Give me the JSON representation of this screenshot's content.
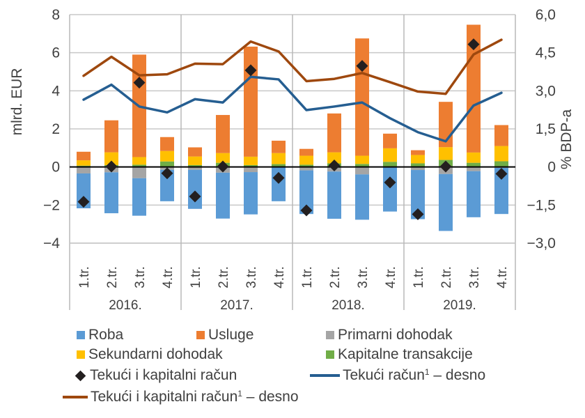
{
  "chart_data": {
    "type": "bar",
    "subtype": "stacked bar with lines and markers",
    "title": "",
    "ylabel": "mlrd. EUR",
    "y2label": "% BDP-a",
    "ylim": [
      -4,
      8
    ],
    "y2lim": [
      -3.0,
      6.0
    ],
    "yticks": [
      "8",
      "6",
      "4",
      "2",
      "0",
      "−2",
      "−4"
    ],
    "yticks_values": [
      8,
      6,
      4,
      2,
      0,
      -2,
      -4
    ],
    "y2ticks": [
      "6,0",
      "4,5",
      "3,0",
      "1,5",
      "0",
      "−1,5",
      "−3,0"
    ],
    "y2ticks_values": [
      6.0,
      4.5,
      3.0,
      1.5,
      0,
      -1.5,
      -3.0
    ],
    "grid": true,
    "groups": [
      "2016.",
      "2017.",
      "2018.",
      "2019."
    ],
    "categories": [
      "1.tr.",
      "2.tr.",
      "3.tr.",
      "4.tr.",
      "1.tr.",
      "2.tr.",
      "3.tr.",
      "4.tr.",
      "1.tr.",
      "2.tr.",
      "3.tr.",
      "4.tr.",
      "1.tr.",
      "2.tr.",
      "3.tr.",
      "4.tr."
    ],
    "series": [
      {
        "name": "Roba",
        "kind": "bar",
        "axis": "left",
        "color": "#5B9BD5",
        "values": [
          -1.83,
          -2.15,
          -1.97,
          -1.65,
          -2.05,
          -2.41,
          -2.22,
          -1.77,
          -2.29,
          -2.48,
          -2.38,
          -2.31,
          -2.58,
          -2.99,
          -2.42,
          -2.42
        ]
      },
      {
        "name": "Usluge",
        "kind": "bar",
        "axis": "left",
        "color": "#ED7D31",
        "values": [
          0.45,
          1.68,
          5.38,
          0.73,
          0.48,
          2.0,
          5.78,
          0.65,
          0.36,
          2.04,
          6.16,
          0.77,
          0.25,
          2.38,
          6.71,
          1.1
        ]
      },
      {
        "name": "Primarni dohodak",
        "kind": "bar",
        "axis": "left",
        "color": "#A5A5A5",
        "values": [
          -0.34,
          -0.28,
          -0.59,
          -0.15,
          -0.15,
          -0.3,
          -0.27,
          -0.03,
          -0.18,
          -0.24,
          -0.39,
          -0.03,
          -0.16,
          -0.37,
          -0.22,
          -0.05
        ]
      },
      {
        "name": "Sekundarni dohodak",
        "kind": "bar",
        "axis": "left",
        "color": "#FFC000",
        "values": [
          0.28,
          0.67,
          0.4,
          0.55,
          0.45,
          0.51,
          0.44,
          0.58,
          0.47,
          0.58,
          0.43,
          0.71,
          0.44,
          0.67,
          0.54,
          0.8
        ]
      },
      {
        "name": "Kapitalne transakcije",
        "kind": "bar",
        "axis": "left",
        "color": "#70AD47",
        "values": [
          0.07,
          0.1,
          0.12,
          0.29,
          0.1,
          0.22,
          0.1,
          0.15,
          0.12,
          0.19,
          0.16,
          0.27,
          0.19,
          0.37,
          0.22,
          0.3
        ]
      },
      {
        "name": "Tekući i kapitalni račun",
        "kind": "marker",
        "axis": "right",
        "color": "#231F20",
        "values": [
          -1.37,
          0.02,
          3.32,
          -0.25,
          -1.16,
          0.02,
          3.81,
          -0.43,
          -1.71,
          0.06,
          3.98,
          -0.61,
          -1.86,
          0.02,
          4.83,
          -0.27
        ]
      },
      {
        "name": "Tekući račun¹ – desno",
        "kind": "line",
        "axis": "right",
        "color": "#255E91",
        "values": [
          2.65,
          3.24,
          2.38,
          2.15,
          2.67,
          2.54,
          3.55,
          3.45,
          2.24,
          2.38,
          2.54,
          1.92,
          1.37,
          1.01,
          2.42,
          2.92
        ]
      },
      {
        "name": "Tekući i kapitalni račun¹ – desno",
        "kind": "line",
        "axis": "right",
        "color": "#9E480E",
        "values": [
          3.59,
          4.34,
          3.61,
          3.65,
          4.07,
          4.05,
          4.94,
          4.55,
          3.38,
          3.47,
          3.7,
          3.34,
          2.97,
          2.88,
          4.43,
          5.01
        ]
      }
    ],
    "legend_position": "bottom"
  },
  "legend": {
    "roba": "Roba",
    "usluge": "Usluge",
    "primarni": "Primarni dohodak",
    "sekundarni": "Sekundarni dohodak",
    "kapitalne": "Kapitalne transakcije",
    "tkr": "Tekući i kapitalni račun",
    "tr_desno_main": "Tekući račun",
    "tr_desno_sup": "1",
    "tr_desno_tail": " – desno",
    "tkr_desno_main": "Tekući i kapitalni račun",
    "tkr_desno_sup": "1",
    "tkr_desno_tail": " – desno"
  }
}
